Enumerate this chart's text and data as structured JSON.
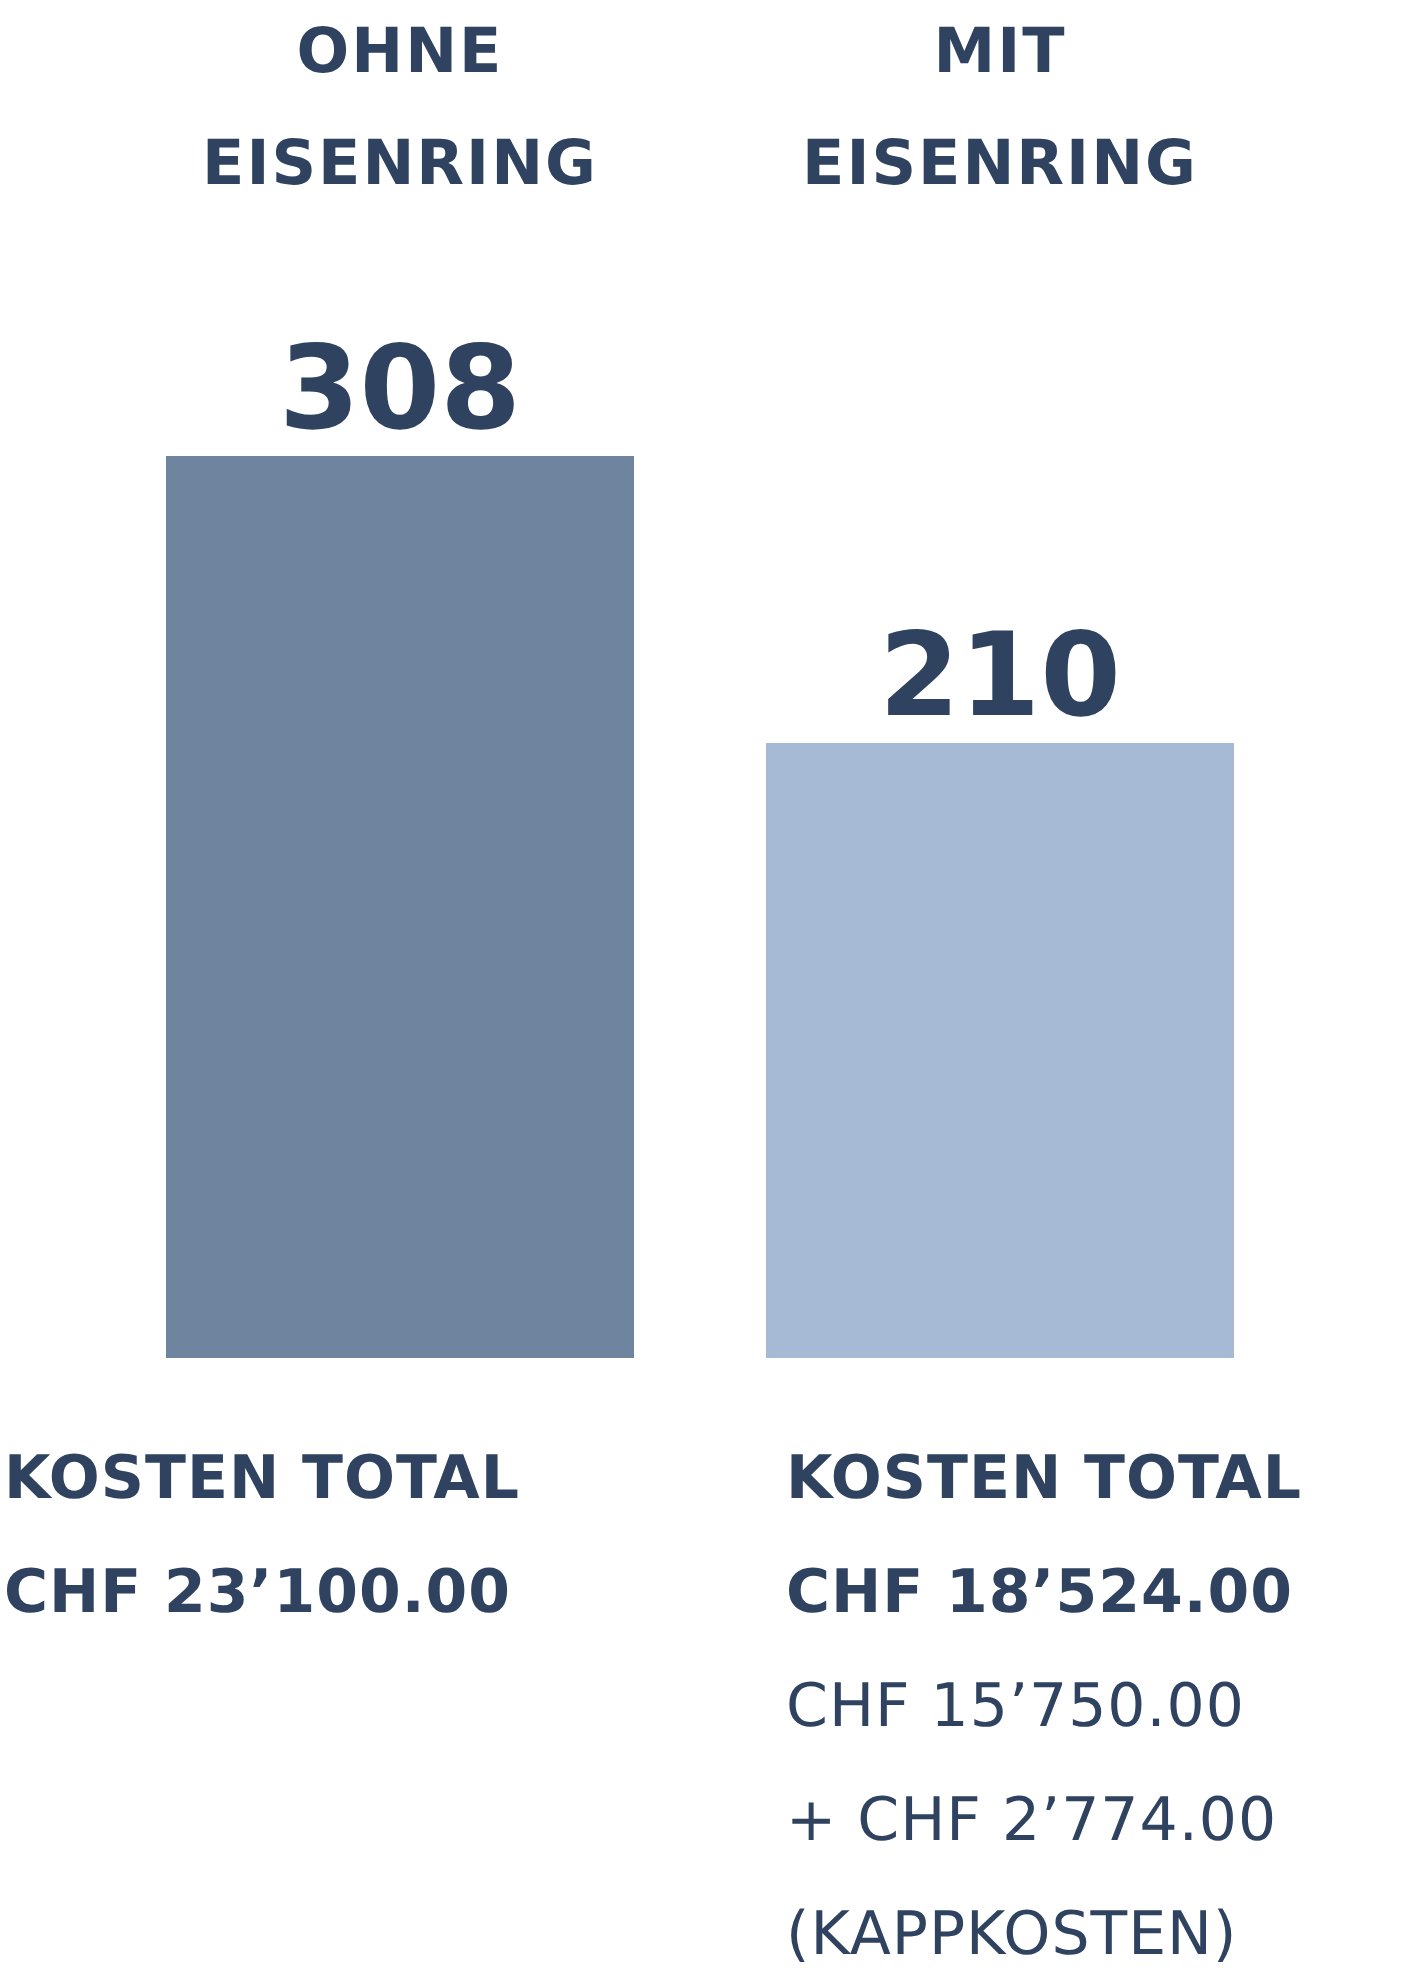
{
  "chart_data": {
    "type": "bar",
    "categories": [
      "OHNE EISENRING",
      "MIT EISENRING"
    ],
    "values": [
      308,
      210
    ],
    "colors": [
      "#6f849f",
      "#a6bad6"
    ],
    "data_labels": true,
    "ylim": [
      0,
      308
    ],
    "annotations": [
      "KOSTEN TOTAL",
      "CHF 23’100.00",
      "KOSTEN TOTAL",
      "CHF 18’524.00",
      "CHF 15’750.00",
      "+ CHF 2’774.00",
      "(KAPPKOSTEN)"
    ]
  }
}
